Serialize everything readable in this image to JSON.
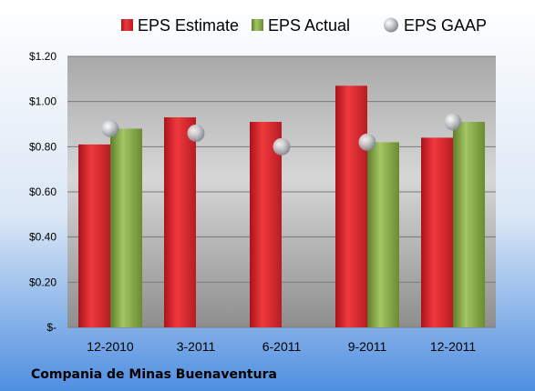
{
  "chart_data": {
    "type": "bar",
    "categories": [
      "12-2010",
      "3-2011",
      "6-2011",
      "9-2011",
      "12-2011"
    ],
    "series": [
      {
        "name": "EPS Estimate",
        "kind": "bar",
        "color": "#e0262b",
        "values": [
          0.81,
          0.93,
          0.91,
          1.07,
          0.84
        ]
      },
      {
        "name": "EPS Actual",
        "kind": "bar",
        "color": "#8db04a",
        "values": [
          0.88,
          null,
          null,
          0.82,
          0.91
        ]
      },
      {
        "name": "EPS GAAP",
        "kind": "marker",
        "color": "#b9bec4",
        "values": [
          0.88,
          0.86,
          0.8,
          0.82,
          0.91
        ]
      }
    ],
    "y_ticks": [
      "$-",
      "$0.20",
      "$0.40",
      "$0.60",
      "$0.80",
      "$1.00",
      "$1.20"
    ],
    "ylim": [
      0,
      1.2
    ],
    "grid": true,
    "legend": "top"
  },
  "footer": {
    "company": "Compania de Minas Buenaventura"
  }
}
